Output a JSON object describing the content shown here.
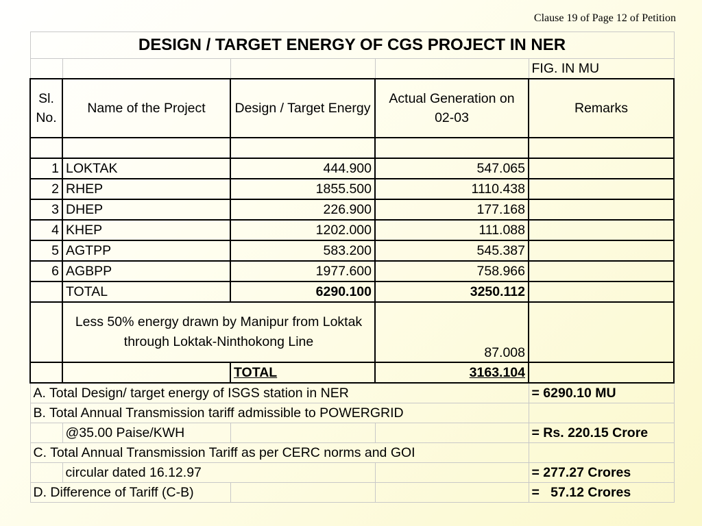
{
  "clause": "Clause 19 of Page 12 of Petition",
  "table": {
    "title": "DESIGN / TARGET ENERGY OF CGS PROJECT IN NER",
    "unit_note": "FIG. IN MU",
    "headers": {
      "sl_no": "Sl. No.",
      "name": "Name of the Project",
      "design": "Design / Target Energy",
      "actual": "Actual Generation on 02-03",
      "remarks": "Remarks"
    },
    "rows": [
      {
        "sl": "1",
        "name": "LOKTAK",
        "design": "444.900",
        "actual": "547.065"
      },
      {
        "sl": "2",
        "name": "RHEP",
        "design": "1855.500",
        "actual": "1110.438"
      },
      {
        "sl": "3",
        "name": "DHEP",
        "design": "226.900",
        "actual": "177.168"
      },
      {
        "sl": "4",
        "name": "KHEP",
        "design": "1202.000",
        "actual": "111.088"
      },
      {
        "sl": "5",
        "name": "AGTPP",
        "design": "583.200",
        "actual": "545.387"
      },
      {
        "sl": "6",
        "name": "AGBPP",
        "design": "1977.600",
        "actual": "758.966"
      }
    ],
    "total": {
      "label": "TOTAL",
      "design": "6290.100",
      "actual": "3250.112"
    },
    "less": {
      "text": "Less 50% energy drawn by Manipur from Loktak through Loktak-Ninthokong  Line",
      "value": "87.008"
    },
    "grand_total": {
      "label": "TOTAL",
      "value": "3163.104"
    }
  },
  "summary": {
    "a_label": "A. Total Design/ target energy of ISGS station in NER",
    "a_value": "= 6290.10 MU",
    "b_label": "B. Total Annual Transmission tariff admissible to POWERGRID",
    "b_sub": "@35.00 Paise/KWH",
    "b_value": "= Rs. 220.15 Crore",
    "c_label": "C. Total Annual Transmission Tariff as per CERC norms and GOI",
    "c_sub": "circular dated 16.12.97",
    "c_value": "= 277.27 Crores",
    "d_label": "D. Difference of Tariff (C-B)",
    "d_value": "=   57.12 Crores"
  }
}
